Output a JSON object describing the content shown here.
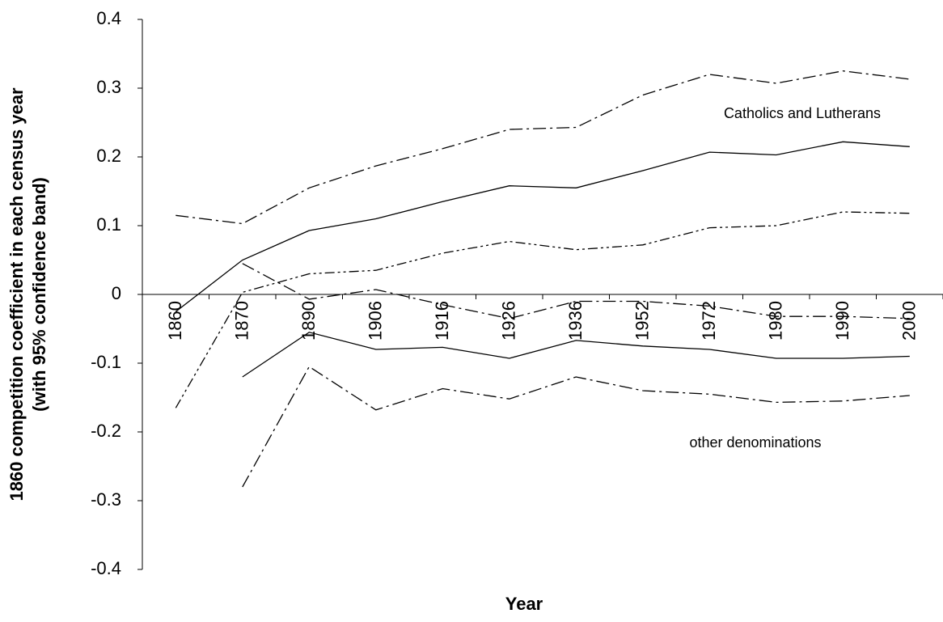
{
  "chart_data": {
    "type": "line",
    "xlabel": "Year",
    "ylabel": [
      "1860 competition coefficient in each census year",
      "(with 95% confidence band)"
    ],
    "categories": [
      "1860",
      "1870",
      "1890",
      "1906",
      "1916",
      "1926",
      "1936",
      "1952",
      "1972",
      "1980",
      "1990",
      "2000"
    ],
    "ylim": [
      -0.4,
      0.4
    ],
    "yticks": [
      0.4,
      0.3,
      0.2,
      0.1,
      0,
      -0.1,
      -0.2,
      -0.3,
      -0.4
    ],
    "annotations": [
      "Catholics and Lutherans",
      "other denominations"
    ],
    "series": [
      {
        "color": "#000000",
        "dash": "solid",
        "values": [
          -0.025,
          0.05,
          0.093,
          0.11,
          0.135,
          0.158,
          0.155,
          0.18,
          0.207,
          0.203,
          0.222,
          0.215
        ]
      },
      {
        "color": "#000000",
        "dash": "dashdot",
        "values": [
          0.115,
          0.103,
          0.155,
          0.187,
          0.212,
          0.24,
          0.243,
          0.29,
          0.32,
          0.307,
          0.325,
          0.313
        ]
      },
      {
        "color": "#000000",
        "dash": "dashdotdot",
        "values": [
          -0.165,
          0.003,
          0.03,
          0.035,
          0.06,
          0.077,
          0.065,
          0.072,
          0.097,
          0.1,
          0.12,
          0.118
        ]
      },
      {
        "color": "#000000",
        "dash": "solid",
        "values": [
          null,
          -0.12,
          -0.055,
          -0.08,
          -0.077,
          -0.093,
          -0.067,
          -0.075,
          -0.08,
          -0.093,
          -0.093,
          -0.09
        ]
      },
      {
        "color": "#000000",
        "dash": "dashdot",
        "values": [
          null,
          0.045,
          -0.007,
          0.007,
          -0.015,
          -0.035,
          -0.01,
          -0.01,
          -0.017,
          -0.032,
          -0.032,
          -0.035
        ]
      },
      {
        "color": "#000000",
        "dash": "dashdot",
        "values": [
          null,
          -0.28,
          -0.105,
          -0.168,
          -0.137,
          -0.152,
          -0.12,
          -0.14,
          -0.145,
          -0.157,
          -0.155,
          -0.147
        ]
      }
    ]
  }
}
